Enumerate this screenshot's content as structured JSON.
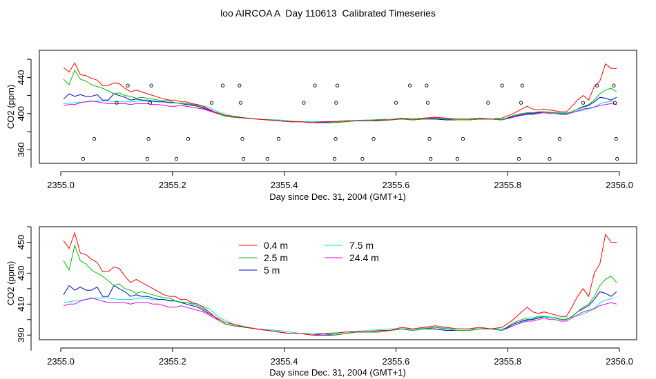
{
  "title": "loo AIRCOA A  Day 110613  Calibrated Timeseries",
  "series_colors": {
    "0.4 m": "#ff0000",
    "2.5 m": "#00bb00",
    "5 m": "#0000cc",
    "7.5 m": "#00dddd",
    "24.4 m": "#dd00dd"
  },
  "chart_data": [
    {
      "type": "scatter",
      "title": "",
      "xlabel": "Day since Dec. 31, 2004 (GMT+1)",
      "ylabel": "CO2 (ppm)",
      "xlim": [
        2355.0,
        2356.0
      ],
      "ylim": [
        345,
        470
      ],
      "xticks": [
        "2355.0",
        "2355.2",
        "2355.4",
        "2355.6",
        "2355.8",
        "2356.0"
      ],
      "yticks": [
        "360",
        "400",
        "440"
      ],
      "grid": false,
      "legend": "none",
      "lines": [
        {
          "name": "0.4 m",
          "x": [
            2355.005,
            2355.015,
            2355.025,
            2355.035,
            2355.045,
            2355.055,
            2355.065,
            2355.075,
            2355.085,
            2355.095,
            2355.105,
            2355.115,
            2355.125,
            2355.135,
            2355.145,
            2355.155,
            2355.165,
            2355.175,
            2355.185,
            2355.195,
            2355.205,
            2355.215,
            2355.225,
            2355.235,
            2355.245,
            2355.255,
            2355.265,
            2355.275,
            2355.285,
            2355.295,
            2355.31,
            2355.33,
            2355.35,
            2355.37,
            2355.39,
            2355.41,
            2355.43,
            2355.45,
            2355.47,
            2355.49,
            2355.51,
            2355.53,
            2355.55,
            2355.57,
            2355.59,
            2355.61,
            2355.63,
            2355.65,
            2355.67,
            2355.69,
            2355.71,
            2355.73,
            2355.75,
            2355.77,
            2355.79,
            2355.81,
            2355.825,
            2355.835,
            2355.845,
            2355.855,
            2355.865,
            2355.875,
            2355.885,
            2355.895,
            2355.905,
            2355.915,
            2355.925,
            2355.935,
            2355.945,
            2355.955,
            2355.965,
            2355.975,
            2355.985,
            2355.995
          ],
          "y": [
            451,
            446,
            456,
            443,
            442,
            439,
            437,
            431,
            431,
            434,
            433,
            428,
            424,
            426,
            424,
            422,
            420,
            418,
            416,
            415,
            415,
            413,
            413,
            411,
            410,
            408,
            405,
            402,
            400,
            398,
            397,
            395,
            394,
            393,
            392,
            391,
            391,
            390,
            391,
            391,
            392,
            392,
            392,
            393,
            393,
            395,
            394,
            395,
            396,
            395,
            394,
            394,
            395,
            394,
            395,
            400,
            405,
            408,
            405,
            404,
            405,
            404,
            403,
            402,
            402,
            408,
            415,
            420,
            415,
            430,
            436,
            455,
            450,
            450
          ]
        },
        {
          "name": "2.5 m",
          "x": [
            2355.005,
            2355.015,
            2355.025,
            2355.035,
            2355.045,
            2355.055,
            2355.065,
            2355.075,
            2355.085,
            2355.095,
            2355.105,
            2355.115,
            2355.125,
            2355.135,
            2355.145,
            2355.155,
            2355.165,
            2355.175,
            2355.185,
            2355.195,
            2355.205,
            2355.215,
            2355.225,
            2355.235,
            2355.245,
            2355.255,
            2355.265,
            2355.275,
            2355.285,
            2355.295,
            2355.31,
            2355.33,
            2355.35,
            2355.37,
            2355.39,
            2355.41,
            2355.43,
            2355.45,
            2355.47,
            2355.49,
            2355.51,
            2355.53,
            2355.55,
            2355.57,
            2355.59,
            2355.61,
            2355.63,
            2355.65,
            2355.67,
            2355.69,
            2355.71,
            2355.73,
            2355.75,
            2355.77,
            2355.79,
            2355.81,
            2355.825,
            2355.835,
            2355.845,
            2355.855,
            2355.865,
            2355.875,
            2355.885,
            2355.895,
            2355.905,
            2355.915,
            2355.925,
            2355.935,
            2355.945,
            2355.955,
            2355.965,
            2355.975,
            2355.985,
            2355.995
          ],
          "y": [
            438,
            432,
            448,
            438,
            436,
            432,
            430,
            428,
            425,
            422,
            423,
            420,
            419,
            417,
            418,
            417,
            416,
            415,
            414,
            414,
            412,
            411,
            411,
            410,
            409,
            407,
            405,
            402,
            399,
            397,
            396,
            395,
            394,
            393,
            392,
            391,
            391,
            390,
            391,
            390,
            391,
            392,
            392,
            392,
            393,
            394,
            393,
            394,
            395,
            394,
            393,
            393,
            394,
            394,
            393,
            398,
            400,
            401,
            401,
            402,
            402,
            401,
            401,
            400,
            400,
            402,
            405,
            408,
            410,
            415,
            422,
            426,
            428,
            424
          ]
        },
        {
          "name": "5 m",
          "x": [
            2355.005,
            2355.015,
            2355.025,
            2355.035,
            2355.045,
            2355.055,
            2355.065,
            2355.075,
            2355.085,
            2355.095,
            2355.105,
            2355.115,
            2355.125,
            2355.135,
            2355.145,
            2355.155,
            2355.165,
            2355.175,
            2355.185,
            2355.195,
            2355.205,
            2355.215,
            2355.225,
            2355.235,
            2355.245,
            2355.255,
            2355.265,
            2355.275,
            2355.285,
            2355.295,
            2355.31,
            2355.33,
            2355.35,
            2355.37,
            2355.39,
            2355.41,
            2355.43,
            2355.45,
            2355.47,
            2355.49,
            2355.51,
            2355.53,
            2355.55,
            2355.57,
            2355.59,
            2355.61,
            2355.63,
            2355.65,
            2355.67,
            2355.69,
            2355.71,
            2355.73,
            2355.75,
            2355.77,
            2355.79,
            2355.81,
            2355.825,
            2355.835,
            2355.845,
            2355.855,
            2355.865,
            2355.875,
            2355.885,
            2355.895,
            2355.905,
            2355.915,
            2355.925,
            2355.935,
            2355.945,
            2355.955,
            2355.965,
            2355.975,
            2355.985,
            2355.995
          ],
          "y": [
            416,
            422,
            419,
            421,
            419,
            419,
            421,
            415,
            415,
            422,
            420,
            418,
            415,
            416,
            415,
            415,
            414,
            413,
            413,
            412,
            412,
            411,
            410,
            409,
            408,
            406,
            404,
            402,
            399,
            397,
            396,
            395,
            394,
            393,
            392,
            391,
            391,
            390,
            390,
            390,
            391,
            392,
            392,
            392,
            393,
            394,
            393,
            394,
            394,
            393,
            393,
            393,
            394,
            394,
            393,
            397,
            399,
            400,
            400,
            401,
            402,
            401,
            401,
            400,
            400,
            402,
            405,
            407,
            409,
            413,
            418,
            417,
            415,
            418
          ]
        },
        {
          "name": "7.5 m",
          "x": [
            2355.005,
            2355.025,
            2355.045,
            2355.065,
            2355.085,
            2355.105,
            2355.125,
            2355.145,
            2355.165,
            2355.185,
            2355.205,
            2355.225,
            2355.245,
            2355.265,
            2355.285,
            2355.31,
            2355.35,
            2355.39,
            2355.43,
            2355.47,
            2355.51,
            2355.55,
            2355.59,
            2355.63,
            2355.67,
            2355.71,
            2355.75,
            2355.79,
            2355.81,
            2355.83,
            2355.85,
            2355.87,
            2355.89,
            2355.91,
            2355.93,
            2355.95,
            2355.97,
            2355.99
          ],
          "y": [
            411,
            412,
            413,
            414,
            414,
            413,
            413,
            414,
            413,
            413,
            412,
            411,
            410,
            407,
            401,
            397,
            394,
            393,
            391,
            391,
            392,
            393,
            394,
            394,
            395,
            394,
            394,
            394,
            396,
            399,
            401,
            402,
            401,
            401,
            403,
            406,
            412,
            414
          ]
        },
        {
          "name": "24.4 m",
          "x": [
            2355.005,
            2355.015,
            2355.025,
            2355.035,
            2355.045,
            2355.055,
            2355.065,
            2355.075,
            2355.085,
            2355.095,
            2355.105,
            2355.115,
            2355.125,
            2355.135,
            2355.145,
            2355.155,
            2355.165,
            2355.175,
            2355.185,
            2355.195,
            2355.205,
            2355.215,
            2355.225,
            2355.235,
            2355.245,
            2355.255,
            2355.265,
            2355.275,
            2355.285,
            2355.295,
            2355.31,
            2355.33,
            2355.35,
            2355.37,
            2355.39,
            2355.41,
            2355.43,
            2355.45,
            2355.47,
            2355.49,
            2355.51,
            2355.53,
            2355.55,
            2355.57,
            2355.59,
            2355.61,
            2355.63,
            2355.65,
            2355.67,
            2355.69,
            2355.71,
            2355.73,
            2355.75,
            2355.77,
            2355.79,
            2355.81,
            2355.825,
            2355.835,
            2355.845,
            2355.855,
            2355.865,
            2355.875,
            2355.885,
            2355.895,
            2355.905,
            2355.915,
            2355.925,
            2355.935,
            2355.945,
            2355.955,
            2355.965,
            2355.975,
            2355.985,
            2355.995
          ],
          "y": [
            409,
            410,
            410,
            412,
            413,
            414,
            413,
            412,
            411,
            411,
            411,
            411,
            410,
            411,
            411,
            411,
            410,
            410,
            409,
            408,
            408,
            409,
            408,
            407,
            406,
            405,
            403,
            401,
            399,
            397,
            396,
            395,
            394,
            393,
            392,
            391,
            391,
            390,
            390,
            390,
            391,
            392,
            392,
            392,
            393,
            394,
            393,
            394,
            394,
            393,
            393,
            393,
            394,
            394,
            393,
            396,
            398,
            399,
            399,
            400,
            401,
            400,
            400,
            399,
            399,
            401,
            403,
            405,
            406,
            407,
            409,
            410,
            411,
            410
          ]
        }
      ],
      "points": [
        {
          "x": 2355.04,
          "y": 350
        },
        {
          "x": 2355.06,
          "y": 372
        },
        {
          "x": 2355.1,
          "y": 412
        },
        {
          "x": 2355.12,
          "y": 431
        },
        {
          "x": 2355.155,
          "y": 350
        },
        {
          "x": 2355.157,
          "y": 372
        },
        {
          "x": 2355.16,
          "y": 412
        },
        {
          "x": 2355.162,
          "y": 431
        },
        {
          "x": 2355.207,
          "y": 350
        },
        {
          "x": 2355.228,
          "y": 372
        },
        {
          "x": 2355.27,
          "y": 412
        },
        {
          "x": 2355.29,
          "y": 431
        },
        {
          "x": 2355.32,
          "y": 431
        },
        {
          "x": 2355.322,
          "y": 412
        },
        {
          "x": 2355.325,
          "y": 372
        },
        {
          "x": 2355.327,
          "y": 350
        },
        {
          "x": 2355.37,
          "y": 350
        },
        {
          "x": 2355.39,
          "y": 372
        },
        {
          "x": 2355.435,
          "y": 412
        },
        {
          "x": 2355.455,
          "y": 431
        },
        {
          "x": 2355.49,
          "y": 350
        },
        {
          "x": 2355.492,
          "y": 372
        },
        {
          "x": 2355.493,
          "y": 412
        },
        {
          "x": 2355.495,
          "y": 431
        },
        {
          "x": 2355.54,
          "y": 350
        },
        {
          "x": 2355.56,
          "y": 372
        },
        {
          "x": 2355.6,
          "y": 412
        },
        {
          "x": 2355.625,
          "y": 431
        },
        {
          "x": 2355.655,
          "y": 431
        },
        {
          "x": 2355.657,
          "y": 412
        },
        {
          "x": 2355.66,
          "y": 372
        },
        {
          "x": 2355.662,
          "y": 350
        },
        {
          "x": 2355.71,
          "y": 350
        },
        {
          "x": 2355.72,
          "y": 372
        },
        {
          "x": 2355.765,
          "y": 412
        },
        {
          "x": 2355.79,
          "y": 431
        },
        {
          "x": 2355.82,
          "y": 350
        },
        {
          "x": 2355.822,
          "y": 372
        },
        {
          "x": 2355.824,
          "y": 412
        },
        {
          "x": 2355.826,
          "y": 431
        },
        {
          "x": 2355.875,
          "y": 350
        },
        {
          "x": 2355.893,
          "y": 372
        },
        {
          "x": 2355.935,
          "y": 412
        },
        {
          "x": 2355.96,
          "y": 431
        },
        {
          "x": 2355.99,
          "y": 431
        },
        {
          "x": 2355.992,
          "y": 412
        },
        {
          "x": 2355.994,
          "y": 372
        },
        {
          "x": 2355.996,
          "y": 350
        }
      ]
    },
    {
      "type": "line",
      "title": "",
      "xlabel": "Day since Dec. 31, 2004 (GMT+1)",
      "ylabel": "CO2 (ppm)",
      "xlim": [
        2355.0,
        2356.0
      ],
      "ylim": [
        387,
        460
      ],
      "xticks": [
        "2355.0",
        "2355.2",
        "2355.4",
        "2355.6",
        "2355.8",
        "2356.0"
      ],
      "yticks": [
        "390",
        "410",
        "430",
        "450"
      ],
      "grid": false,
      "legend": "top-left",
      "legend_entries": [
        "0.4 m",
        "2.5 m",
        "5 m",
        "7.5 m",
        "24.4 m"
      ],
      "series_source": "same as chart 1 lines"
    }
  ]
}
